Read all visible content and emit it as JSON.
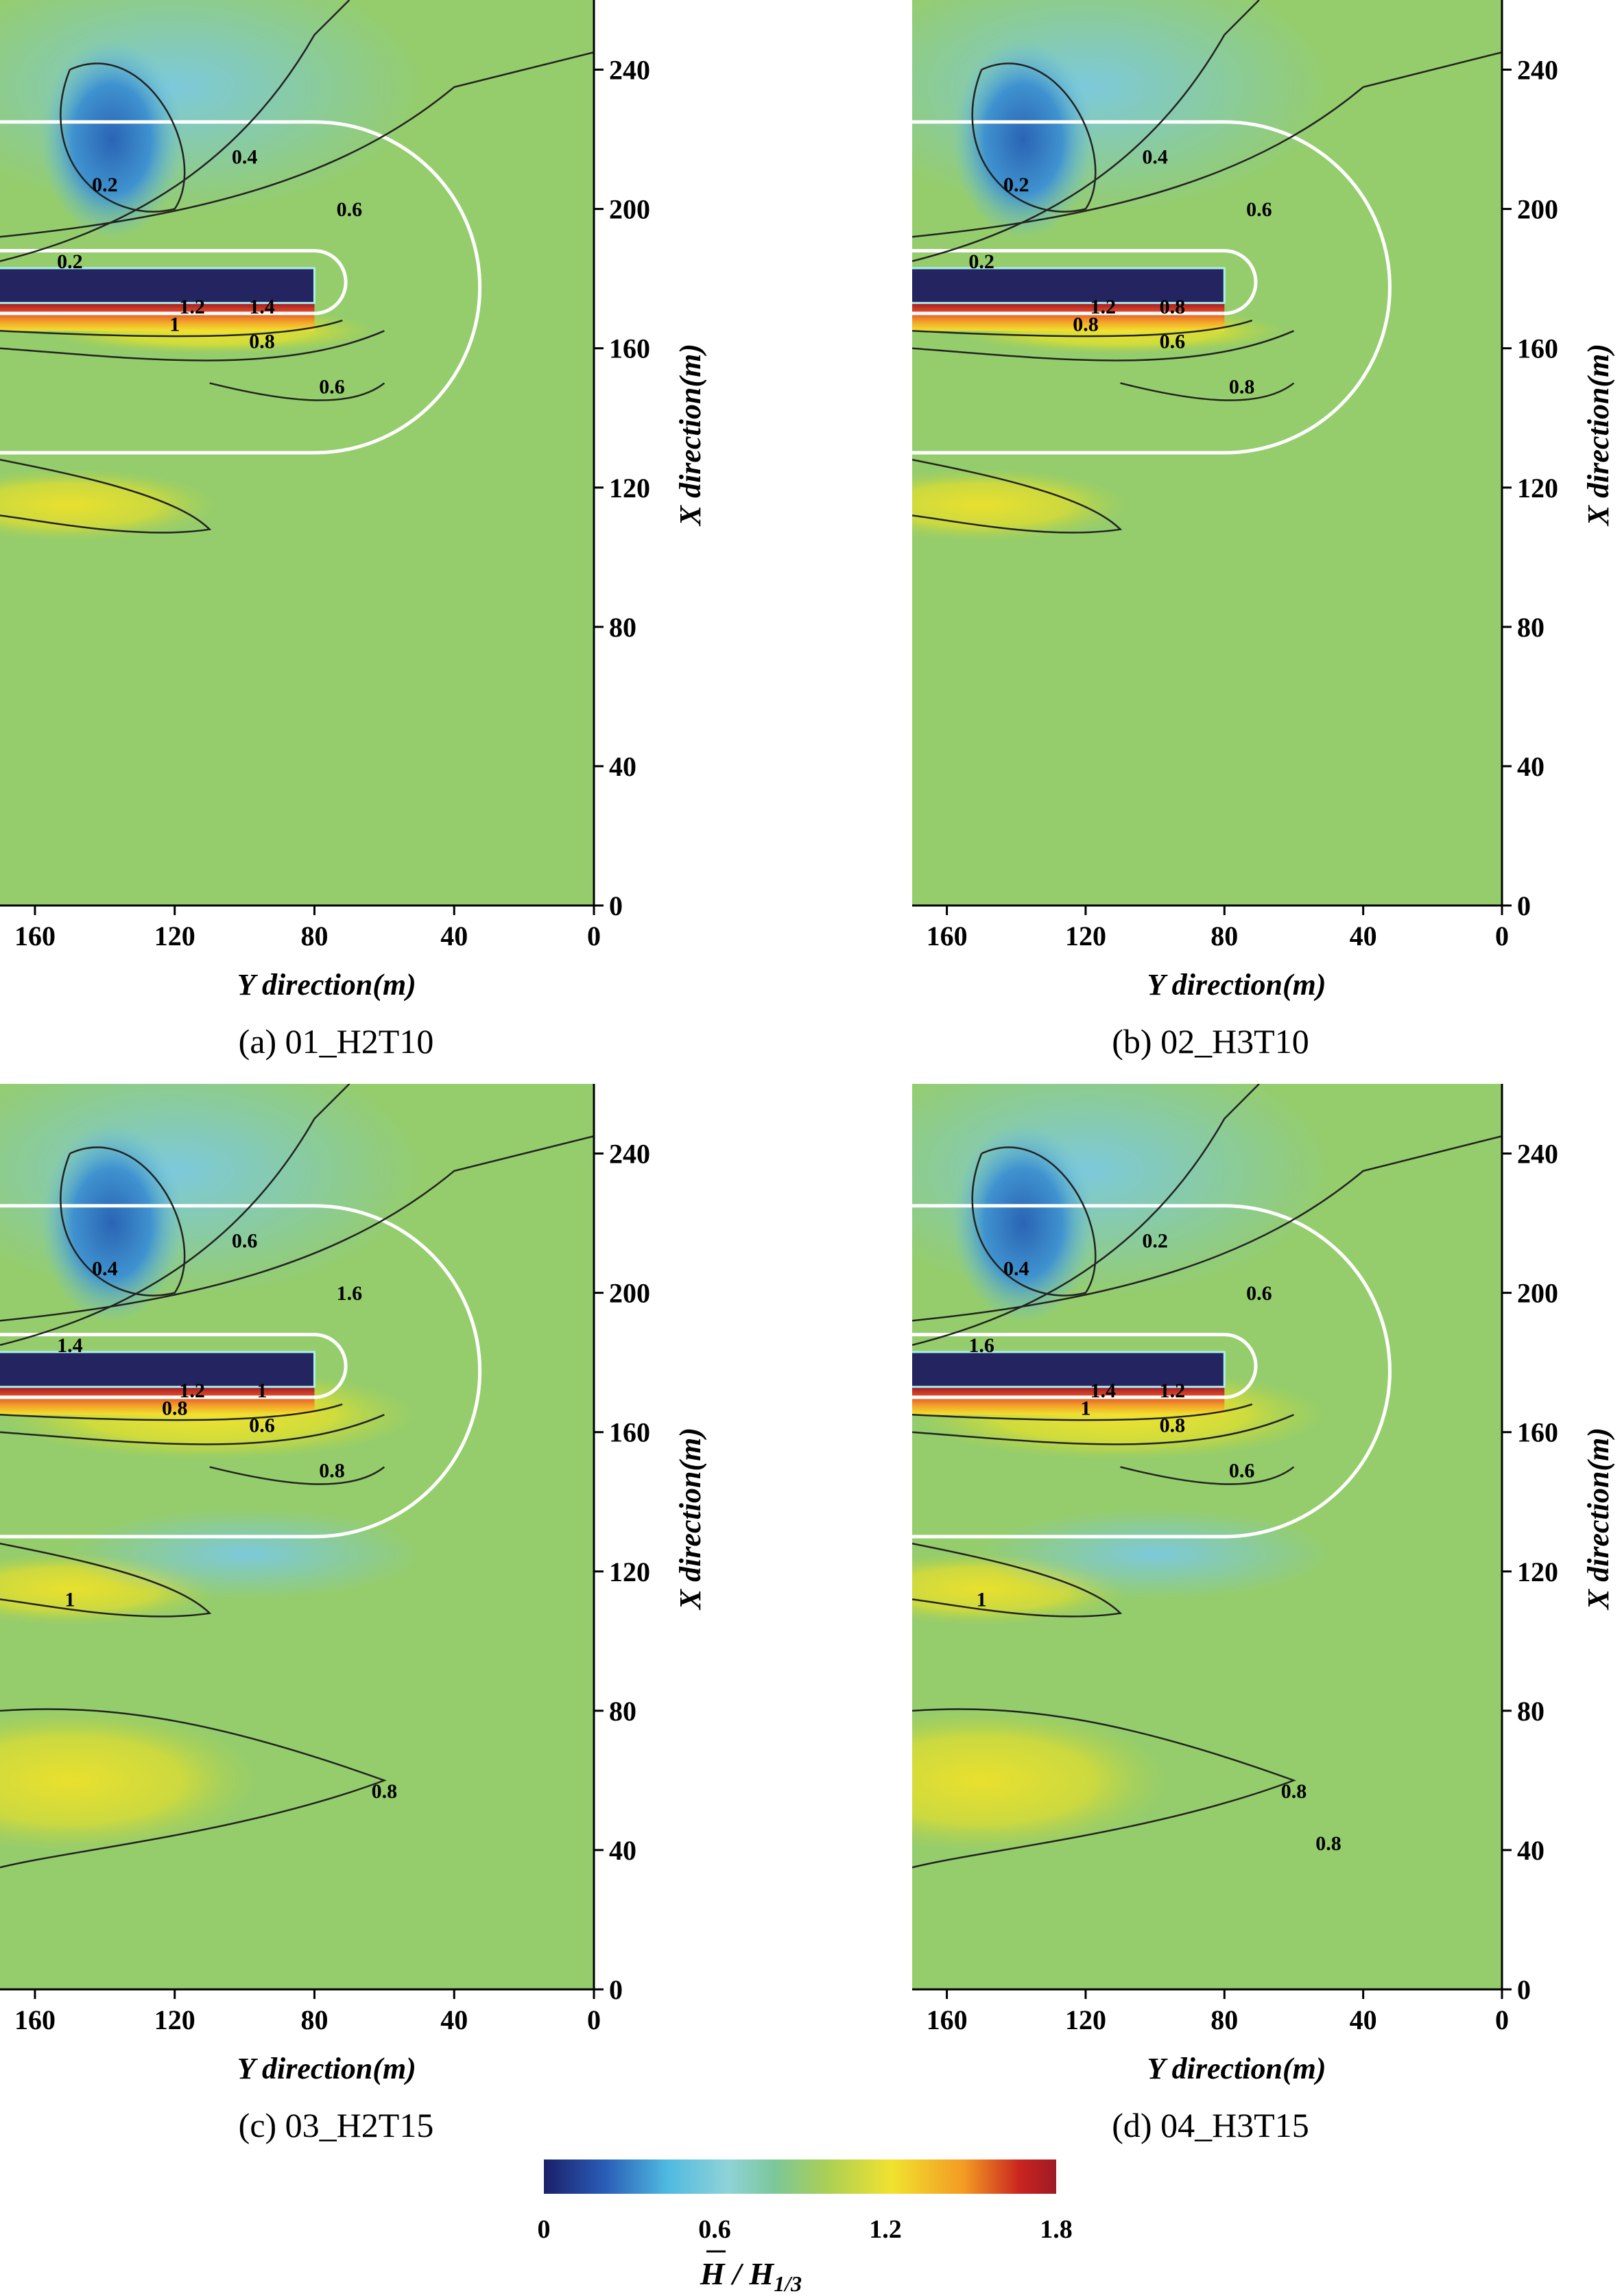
{
  "chart_data": [
    {
      "panel": "a",
      "type": "heatmap",
      "caption": "(a)  01_H2T10",
      "xlabel": "Y direction(m)",
      "ylabel": "X direction(m)",
      "x_ticks": [
        "160",
        "120",
        "80",
        "40",
        "0"
      ],
      "y_ticks": [
        "0",
        "40",
        "80",
        "120",
        "160",
        "200",
        "240"
      ],
      "xlim": [
        170,
        0
      ],
      "ylim": [
        0,
        260
      ],
      "contour_labels": [
        "0.2",
        "0.4",
        "0.6",
        "0.2",
        "1.2",
        "1.4",
        "1",
        "0.8",
        "0.6"
      ],
      "features": {
        "breakwater": {
          "y_range": [
            0,
            80
          ],
          "x_range": [
            173,
            183
          ]
        },
        "dominant": "sheltered zone behind breakwater with minimum near 0.2, strong amplification at the seaward face"
      }
    },
    {
      "panel": "b",
      "type": "heatmap",
      "caption": "(b)  02_H3T10",
      "xlabel": "Y direction(m)",
      "ylabel": "X direction(m)",
      "x_ticks": [
        "160",
        "120",
        "80",
        "40",
        "0"
      ],
      "y_ticks": [
        "0",
        "40",
        "80",
        "120",
        "160",
        "200",
        "240"
      ],
      "xlim": [
        170,
        0
      ],
      "ylim": [
        0,
        260
      ],
      "contour_labels": [
        "0.2",
        "0.4",
        "0.6",
        "0.2",
        "1.2",
        "0.8",
        "0.8",
        "0.6",
        "0.8"
      ]
    },
    {
      "panel": "c",
      "type": "heatmap",
      "caption": "(c)  03_H2T15",
      "xlabel": "Y direction(m)",
      "ylabel": "X direction(m)",
      "x_ticks": [
        "160",
        "120",
        "80",
        "40",
        "0"
      ],
      "y_ticks": [
        "0",
        "40",
        "80",
        "120",
        "160",
        "200",
        "240"
      ],
      "xlim": [
        170,
        0
      ],
      "ylim": [
        0,
        260
      ],
      "contour_labels": [
        "0.4",
        "0.6",
        "1.6",
        "1.4",
        "1.2",
        "1",
        "0.8",
        "0.6",
        "0.8",
        "1",
        "0.8"
      ]
    },
    {
      "panel": "d",
      "type": "heatmap",
      "caption": "(d)  04_H3T15",
      "xlabel": "Y direction(m)",
      "ylabel": "X direction(m)",
      "x_ticks": [
        "160",
        "120",
        "80",
        "40",
        "0"
      ],
      "y_ticks": [
        "0",
        "40",
        "80",
        "120",
        "160",
        "200",
        "240"
      ],
      "xlim": [
        170,
        0
      ],
      "ylim": [
        0,
        260
      ],
      "contour_labels": [
        "0.4",
        "0.2",
        "0.6",
        "1.6",
        "1.4",
        "1.2",
        "1",
        "0.8",
        "0.6",
        "1",
        "0.8",
        "0.8"
      ]
    }
  ],
  "colorbar": {
    "ticks": [
      "0",
      "0.6",
      "1.2",
      "1.8"
    ],
    "range": [
      0,
      1.8
    ],
    "label_prefix": "H",
    "label_suffix": " / H",
    "label_sub": "1/3",
    "colormap": [
      "#1b1f6a",
      "#2a5db8",
      "#4fb9e0",
      "#8fd3d8",
      "#7cc79a",
      "#a9cf56",
      "#f1e22f",
      "#f39a23",
      "#c9241f",
      "#9e1a24"
    ]
  }
}
